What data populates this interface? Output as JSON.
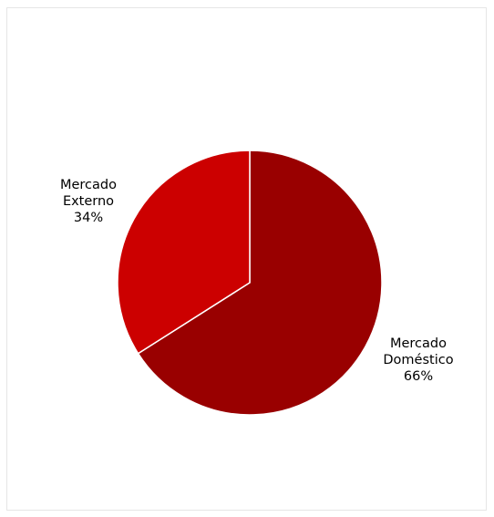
{
  "chart_data": {
    "type": "pie",
    "categories": [
      "Mercado Doméstico",
      "Mercado Externo"
    ],
    "values": [
      66,
      34
    ],
    "labels": [
      {
        "lines": [
          "Mercado",
          "Doméstico",
          "66%"
        ]
      },
      {
        "lines": [
          "Mercado",
          "Externo",
          "34%"
        ]
      }
    ],
    "colors": [
      "#990000",
      "#cc0000"
    ],
    "title": ""
  }
}
